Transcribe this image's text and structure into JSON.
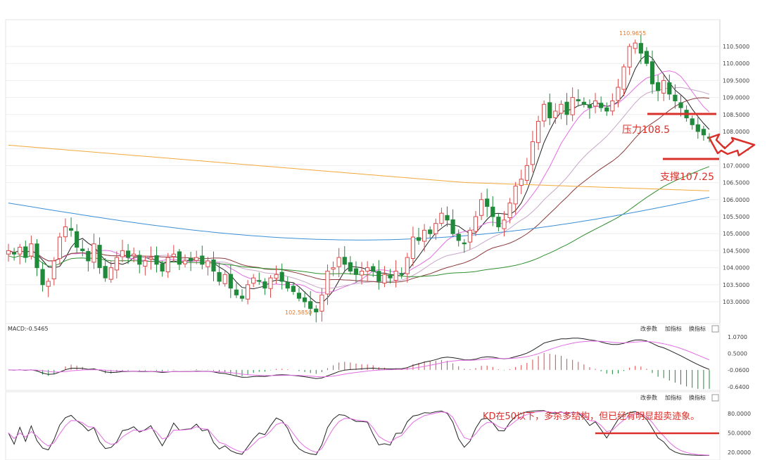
{
  "chart_data": {
    "type": "candlestick",
    "price": {
      "ylim": [
        102.5,
        111.0
      ],
      "yticks": [
        "110.5000",
        "110.0000",
        "109.5000",
        "109.0000",
        "108.5000",
        "108.0000",
        "107.5000",
        "107.0000",
        "106.5000",
        "106.0000",
        "105.5000",
        "105.0000",
        "104.5000",
        "104.0000",
        "103.5000",
        "103.0000"
      ],
      "ytick_values": [
        110.5,
        110.0,
        109.5,
        109.0,
        108.5,
        108.0,
        107.5,
        107.0,
        106.5,
        106.0,
        105.5,
        105.0,
        104.5,
        104.0,
        103.5,
        103.0
      ],
      "high_label": "110.9655",
      "low_label": "102.5850",
      "high_value": 110.9655,
      "low_value": 102.585,
      "close_series": [
        104.5,
        104.4,
        104.6,
        104.3,
        104.7,
        104.0,
        103.5,
        103.6,
        104.2,
        104.9,
        105.2,
        105.1,
        104.6,
        104.5,
        104.2,
        104.7,
        104.0,
        103.7,
        104.0,
        104.3,
        104.5,
        104.3,
        104.4,
        104.1,
        104.2,
        104.3,
        104.1,
        103.9,
        104.3,
        104.4,
        104.1,
        104.2,
        104.2,
        104.3,
        104.1,
        104.2,
        103.9,
        103.6,
        103.8,
        103.4,
        103.2,
        103.1,
        103.5,
        103.7,
        103.6,
        103.4,
        103.7,
        103.8,
        103.6,
        103.4,
        103.3,
        103.1,
        103.0,
        102.8,
        102.7,
        103.2,
        103.9,
        104.0,
        104.3,
        104.1,
        103.9,
        103.8,
        103.9,
        104.0,
        103.9,
        103.6,
        103.8,
        103.7,
        103.9,
        103.8,
        104.3,
        104.9,
        104.8,
        105.1,
        105.0,
        105.3,
        105.6,
        105.4,
        105.0,
        104.8,
        104.7,
        105.1,
        105.5,
        106.0,
        105.8,
        105.5,
        105.2,
        105.4,
        105.9,
        106.4,
        106.6,
        107.0,
        107.7,
        108.3,
        108.8,
        108.4,
        108.6,
        108.8,
        108.5,
        109.0,
        108.9,
        108.8,
        108.7,
        108.9,
        108.7,
        108.6,
        108.9,
        109.3,
        109.9,
        110.5,
        110.6,
        110.3,
        110.0,
        109.4,
        109.2,
        109.5,
        109.1,
        108.9,
        108.7,
        108.4,
        108.2,
        108.0,
        107.9,
        107.8
      ],
      "ma_lines": [
        {
          "color": "#222222",
          "name": ""
        },
        {
          "color": "#e36de3",
          "name": ""
        },
        {
          "color": "#c7a6c9",
          "name": ""
        },
        {
          "color": "#8a3a3a",
          "name": ""
        },
        {
          "color": "#2f8f2f",
          "name": ""
        },
        {
          "color": "#3b8fd6",
          "name": ""
        },
        {
          "color": "#f2a93b",
          "name": ""
        }
      ]
    },
    "annotations": [
      {
        "text": "压力108.5",
        "value": 108.5
      },
      {
        "text": "支撑107.25",
        "value": 107.25
      },
      {
        "text": "KD在50以下，多杀多结构，但已经有明显超卖迹象。",
        "value": 50
      }
    ],
    "macd": {
      "label": "MACD:-0.5465",
      "yticks": [
        "1.0700",
        "0.5000",
        "-0.0600",
        "-0.6400"
      ],
      "ytick_values": [
        1.07,
        0.5,
        -0.06,
        -0.64
      ],
      "buttons": [
        "改参数",
        "加指标",
        "换指标"
      ]
    },
    "kd": {
      "yticks": [
        "80.0000",
        "50.0000",
        "20.0000"
      ],
      "ytick_values": [
        80,
        50,
        20
      ],
      "buttons": [
        "改参数",
        "加指标",
        "换指标"
      ]
    },
    "colors": {
      "up": "#d94a4a",
      "down": "#1e8a3a",
      "annotation": "#d9302b",
      "grid": "#eeeeee"
    }
  }
}
